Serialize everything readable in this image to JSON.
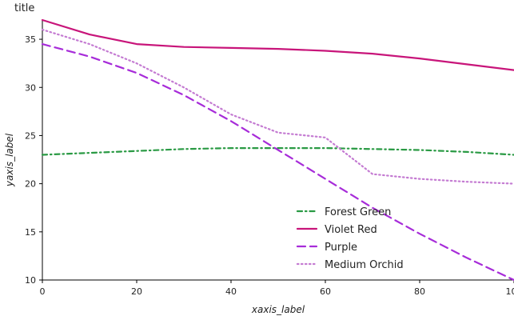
{
  "chart_data": {
    "type": "line",
    "title": "title",
    "xlabel": "xaxis_label",
    "ylabel": "yaxis_label",
    "xlim": [
      0,
      100
    ],
    "ylim": [
      10,
      37
    ],
    "x_ticks": [
      0,
      20,
      40,
      60,
      80,
      100
    ],
    "y_ticks": [
      10,
      15,
      20,
      25,
      30,
      35
    ],
    "grid": false,
    "legend_position": "bottom-right",
    "series": [
      {
        "name": "Forest Green",
        "color": "#2a9a44",
        "dash": "dashdot",
        "x": [
          0,
          10,
          20,
          30,
          40,
          50,
          60,
          70,
          80,
          90,
          100
        ],
        "y": [
          23.0,
          23.2,
          23.4,
          23.6,
          23.7,
          23.7,
          23.7,
          23.6,
          23.5,
          23.3,
          23.0
        ]
      },
      {
        "name": "Violet Red",
        "color": "#c8157a",
        "dash": "solid",
        "x": [
          0,
          10,
          20,
          30,
          40,
          50,
          60,
          70,
          80,
          90,
          100
        ],
        "y": [
          37.0,
          35.5,
          34.5,
          34.2,
          34.1,
          34.0,
          33.8,
          33.5,
          33.0,
          32.4,
          31.8
        ]
      },
      {
        "name": "Purple",
        "color": "#a72cd9",
        "dash": "dashed",
        "x": [
          0,
          10,
          20,
          30,
          40,
          50,
          60,
          70,
          80,
          90,
          100
        ],
        "y": [
          34.5,
          33.2,
          31.5,
          29.2,
          26.5,
          23.5,
          20.5,
          17.5,
          14.8,
          12.3,
          10.0
        ]
      },
      {
        "name": "Medium Orchid",
        "color": "#c47bd2",
        "dash": "dotted",
        "x": [
          0,
          10,
          20,
          30,
          40,
          50,
          60,
          70,
          80,
          90,
          100
        ],
        "y": [
          36.0,
          34.5,
          32.5,
          30.0,
          27.2,
          25.3,
          24.8,
          21.0,
          20.5,
          20.2,
          20.0
        ]
      }
    ],
    "legend_order": [
      "Forest Green",
      "Violet Red",
      "Purple",
      "Medium Orchid"
    ]
  }
}
